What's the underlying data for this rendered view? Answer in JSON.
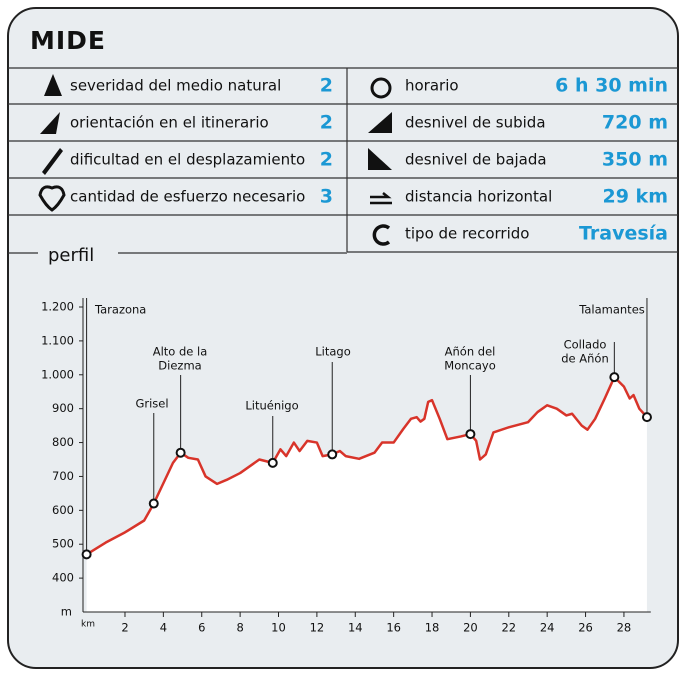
{
  "header": {
    "title": "MIDE"
  },
  "table": {
    "left": [
      {
        "label": "severidad del medio natural",
        "value": 2
      },
      {
        "label": "orientación en el itinerario",
        "value": 2
      },
      {
        "label": "dificultad en el desplazamiento",
        "value": 2
      },
      {
        "label": "cantidad de esfuerzo necesario",
        "value": 3
      }
    ],
    "right": [
      {
        "label": "horario",
        "value": "6 h 30 min"
      },
      {
        "label": "desnivel de subida",
        "value": "720 m"
      },
      {
        "label": "desnivel de bajada",
        "value": "350 m"
      },
      {
        "label": "distancia horizontal",
        "value": "29 km"
      },
      {
        "label": "tipo de recorrido",
        "value": "Travesía"
      }
    ]
  },
  "chart_data": {
    "type": "line",
    "title": "perfil",
    "x_label": "km",
    "y_label": "m",
    "color": "#d8342a",
    "xlim": [
      0,
      29.4
    ],
    "ylim": [
      300,
      1200
    ],
    "xticks": [
      2,
      4,
      6,
      8,
      10,
      12,
      14,
      16,
      18,
      20,
      22,
      24,
      26,
      28
    ],
    "yticks": [
      400,
      500,
      600,
      700,
      800,
      900,
      {
        "value": 1000,
        "label": "1.000"
      },
      {
        "value": 1100,
        "label": "1.100"
      },
      {
        "value": 1200,
        "label": "1.200"
      }
    ],
    "x": [
      0,
      1,
      2,
      3,
      3.5,
      4,
      4.5,
      4.9,
      5.3,
      5.8,
      6.2,
      6.8,
      7.3,
      8,
      9,
      9.7,
      10.1,
      10.4,
      10.8,
      11.1,
      11.5,
      12.0,
      12.3,
      12.8,
      13.2,
      13.5,
      14.2,
      15,
      15.4,
      16,
      16.5,
      16.9,
      17.2,
      17.4,
      17.6,
      17.8,
      18.0,
      18.4,
      18.8,
      19.5,
      20,
      20.3,
      20.5,
      20.8,
      21.2,
      22,
      23,
      23.5,
      24,
      24.5,
      25,
      25.3,
      25.8,
      26.1,
      26.5,
      27,
      27.5,
      28,
      28.3,
      28.5,
      28.8,
      29.2
    ],
    "values": [
      470,
      505,
      535,
      570,
      620,
      680,
      740,
      770,
      755,
      750,
      700,
      678,
      690,
      710,
      750,
      740,
      780,
      760,
      800,
      775,
      805,
      800,
      760,
      765,
      775,
      760,
      752,
      770,
      800,
      800,
      840,
      870,
      875,
      862,
      870,
      920,
      925,
      870,
      810,
      818,
      825,
      805,
      750,
      765,
      830,
      845,
      860,
      890,
      910,
      900,
      880,
      885,
      850,
      838,
      870,
      930,
      993,
      965,
      930,
      940,
      900,
      875
    ],
    "points": [
      {
        "name": [
          "Tarazona"
        ],
        "x": 0,
        "y": 470
      },
      {
        "name": [
          "Grisel"
        ],
        "x": 3.5,
        "y": 620
      },
      {
        "name": [
          "Alto de la",
          "Diezma"
        ],
        "x": 4.9,
        "y": 770
      },
      {
        "name": [
          "Lituénigo"
        ],
        "x": 9.7,
        "y": 740
      },
      {
        "name": [
          "Litago"
        ],
        "x": 12.8,
        "y": 765
      },
      {
        "name": [
          "Añón del",
          "Moncayo"
        ],
        "x": 20.0,
        "y": 825
      },
      {
        "name": [
          "Collado",
          "de Añón"
        ],
        "x": 27.5,
        "y": 993
      },
      {
        "name": [
          "Talamantes"
        ],
        "x": 29.2,
        "y": 875
      }
    ]
  }
}
